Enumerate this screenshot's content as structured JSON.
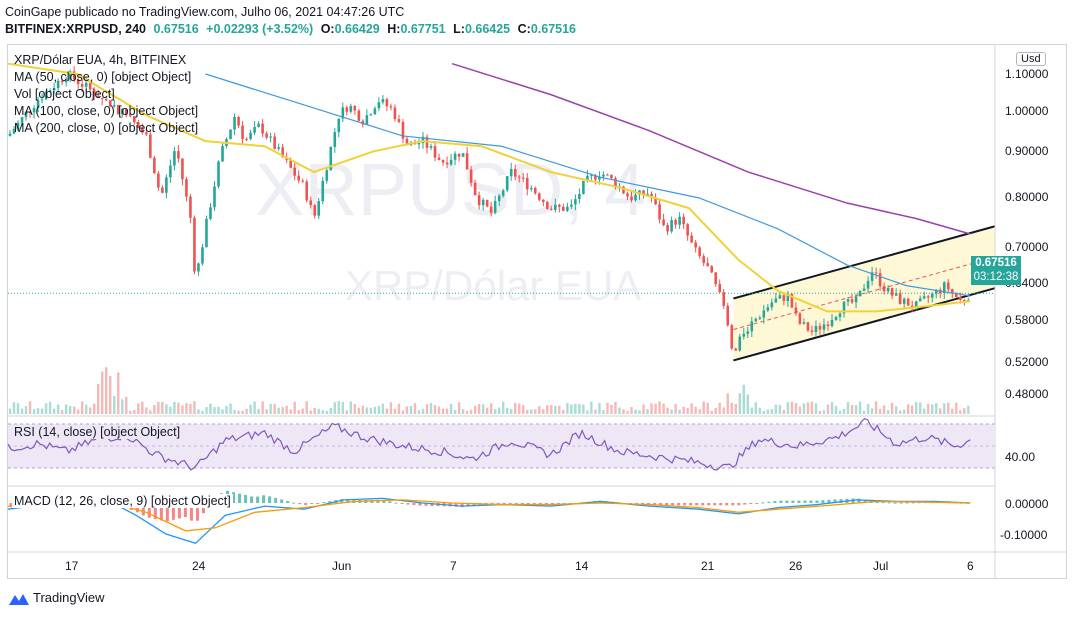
{
  "header": {
    "publisher_line": "CoinGape publicado no TradingView.com, Julho 06, 2021 04:47:26 UTC",
    "symbol": "BITFINEX:XRPUSD, 240",
    "last": "0.67516",
    "change": "+0.02293 (+3.52%)",
    "open_label": "O:",
    "open": "0.66429",
    "high_label": "H:",
    "high": "0.67751",
    "low_label": "L:",
    "low": "0.66425",
    "close_label": "C:",
    "close": "0.67516"
  },
  "legend": {
    "title": "XRP/Dólar EUA, 4h, BITFINEX",
    "ma50": "MA (50, close, 0) [object Object]",
    "vol": "Vol [object Object]",
    "ma100": "MA (100, close, 0) [object Object]",
    "ma200": "MA (200, close, 0) [object Object]"
  },
  "watermark": {
    "ticker": "XRPUSD, 4",
    "name": "XRP/Dólar EUA"
  },
  "price_axis": {
    "currency": "Usd",
    "ticks": [
      "1.10000",
      "1.00000",
      "0.90000",
      "0.80000",
      "0.70000",
      "0.58000",
      "0.52000",
      "0.48000"
    ],
    "current_price": "0.67516",
    "countdown": "03:12:38",
    "partial_tick": "0.64000"
  },
  "rsi": {
    "label": "RSI (14, close) [object Object]",
    "tick": "40.00"
  },
  "macd": {
    "label": "MACD (12, 26, close, 9) [object Object]",
    "ticks": [
      "0.00000",
      "-0.10000"
    ]
  },
  "time_axis": {
    "ticks": [
      "17",
      "24",
      "Jun",
      "7",
      "14",
      "21",
      "26",
      "Jul",
      "6"
    ]
  },
  "footer": {
    "brand": "TradingView"
  },
  "colors": {
    "up": "#26a69a",
    "down": "#ef5350",
    "ma50": "#f2d137",
    "ma100": "#3d9ae0",
    "ma200": "#9c3fb0",
    "rsi": "#7e57c2",
    "macd": "#2196f3",
    "signal": "#ff9800",
    "channel_fill": "#fff8d6",
    "channel_line": "#131722",
    "channel_mid": "#ef5350"
  },
  "chart_data": [
    {
      "type": "candlestick",
      "title": "XRP/Dólar EUA, 4h, BITFINEX",
      "ylim": [
        0.46,
        1.12
      ],
      "x": [
        "17",
        "24",
        "Jun",
        "7",
        "14",
        "21",
        "26",
        "Jul",
        "6"
      ],
      "close_path": [
        [
          0.0,
          0.98
        ],
        [
          0.03,
          1.05
        ],
        [
          0.06,
          1.1
        ],
        [
          0.09,
          1.06
        ],
        [
          0.12,
          1.02
        ],
        [
          0.14,
          0.98
        ],
        [
          0.155,
          0.86
        ],
        [
          0.17,
          0.96
        ],
        [
          0.185,
          0.82
        ],
        [
          0.19,
          0.7
        ],
        [
          0.2,
          0.8
        ],
        [
          0.215,
          0.94
        ],
        [
          0.23,
          1.02
        ],
        [
          0.24,
          0.97
        ],
        [
          0.255,
          1.0
        ],
        [
          0.27,
          0.96
        ],
        [
          0.285,
          0.92
        ],
        [
          0.3,
          0.88
        ],
        [
          0.31,
          0.82
        ],
        [
          0.32,
          0.9
        ],
        [
          0.335,
          1.02
        ],
        [
          0.345,
          1.04
        ],
        [
          0.36,
          1.01
        ],
        [
          0.375,
          1.05
        ],
        [
          0.39,
          1.03
        ],
        [
          0.405,
          0.96
        ],
        [
          0.42,
          0.97
        ],
        [
          0.44,
          0.93
        ],
        [
          0.46,
          0.95
        ],
        [
          0.475,
          0.86
        ],
        [
          0.49,
          0.83
        ],
        [
          0.51,
          0.91
        ],
        [
          0.53,
          0.88
        ],
        [
          0.55,
          0.84
        ],
        [
          0.57,
          0.84
        ],
        [
          0.585,
          0.89
        ],
        [
          0.6,
          0.91
        ],
        [
          0.615,
          0.89
        ],
        [
          0.63,
          0.86
        ],
        [
          0.65,
          0.87
        ],
        [
          0.665,
          0.8
        ],
        [
          0.68,
          0.82
        ],
        [
          0.695,
          0.76
        ],
        [
          0.71,
          0.72
        ],
        [
          0.725,
          0.65
        ],
        [
          0.735,
          0.55
        ],
        [
          0.745,
          0.6
        ],
        [
          0.76,
          0.63
        ],
        [
          0.775,
          0.66
        ],
        [
          0.79,
          0.67
        ],
        [
          0.8,
          0.62
        ],
        [
          0.815,
          0.6
        ],
        [
          0.83,
          0.62
        ],
        [
          0.845,
          0.65
        ],
        [
          0.86,
          0.66
        ],
        [
          0.875,
          0.72
        ],
        [
          0.89,
          0.68
        ],
        [
          0.905,
          0.66
        ],
        [
          0.92,
          0.65
        ],
        [
          0.935,
          0.67
        ],
        [
          0.95,
          0.69
        ],
        [
          0.965,
          0.66
        ],
        [
          0.975,
          0.675
        ]
      ],
      "ma50": [
        [
          0.0,
          1.12
        ],
        [
          0.07,
          1.1
        ],
        [
          0.14,
          1.02
        ],
        [
          0.2,
          0.97
        ],
        [
          0.26,
          0.96
        ],
        [
          0.31,
          0.91
        ],
        [
          0.37,
          0.95
        ],
        [
          0.42,
          0.97
        ],
        [
          0.48,
          0.96
        ],
        [
          0.55,
          0.91
        ],
        [
          0.62,
          0.88
        ],
        [
          0.69,
          0.84
        ],
        [
          0.74,
          0.74
        ],
        [
          0.78,
          0.68
        ],
        [
          0.83,
          0.64
        ],
        [
          0.88,
          0.64
        ],
        [
          0.93,
          0.65
        ],
        [
          0.975,
          0.66
        ]
      ],
      "ma100": [
        [
          0.2,
          1.1
        ],
        [
          0.3,
          1.04
        ],
        [
          0.4,
          0.98
        ],
        [
          0.5,
          0.96
        ],
        [
          0.6,
          0.9
        ],
        [
          0.7,
          0.86
        ],
        [
          0.78,
          0.8
        ],
        [
          0.85,
          0.73
        ],
        [
          0.91,
          0.69
        ],
        [
          0.975,
          0.67
        ]
      ],
      "ma200": [
        [
          0.45,
          1.12
        ],
        [
          0.55,
          1.06
        ],
        [
          0.65,
          0.99
        ],
        [
          0.75,
          0.91
        ],
        [
          0.85,
          0.85
        ],
        [
          0.92,
          0.82
        ],
        [
          0.975,
          0.79
        ]
      ],
      "channel": {
        "upper": [
          [
            0.735,
            0.665
          ],
          [
            1.0,
            0.805
          ]
        ],
        "lower": [
          [
            0.735,
            0.545
          ],
          [
            1.0,
            0.685
          ]
        ]
      }
    },
    {
      "type": "line",
      "name": "RSI",
      "ylabel": "RSI (14, close)",
      "ylim": [
        20,
        80
      ],
      "band": [
        30,
        70
      ],
      "points": [
        [
          0.0,
          48
        ],
        [
          0.03,
          52
        ],
        [
          0.06,
          45
        ],
        [
          0.09,
          56
        ],
        [
          0.12,
          60
        ],
        [
          0.15,
          42
        ],
        [
          0.19,
          30
        ],
        [
          0.22,
          55
        ],
        [
          0.26,
          62
        ],
        [
          0.29,
          45
        ],
        [
          0.33,
          68
        ],
        [
          0.36,
          58
        ],
        [
          0.4,
          50
        ],
        [
          0.44,
          45
        ],
        [
          0.47,
          38
        ],
        [
          0.51,
          55
        ],
        [
          0.55,
          42
        ],
        [
          0.58,
          62
        ],
        [
          0.62,
          45
        ],
        [
          0.66,
          40
        ],
        [
          0.7,
          35
        ],
        [
          0.73,
          30
        ],
        [
          0.76,
          56
        ],
        [
          0.8,
          50
        ],
        [
          0.84,
          58
        ],
        [
          0.87,
          72
        ],
        [
          0.9,
          52
        ],
        [
          0.93,
          58
        ],
        [
          0.96,
          50
        ],
        [
          0.975,
          55
        ]
      ]
    },
    {
      "type": "line",
      "name": "MACD",
      "ylabel": "MACD (12, 26, close, 9)",
      "ylim": [
        -0.13,
        0.03
      ],
      "macd": [
        [
          0.0,
          -0.02
        ],
        [
          0.05,
          0.0
        ],
        [
          0.1,
          0.01
        ],
        [
          0.13,
          -0.04
        ],
        [
          0.16,
          -0.1
        ],
        [
          0.19,
          -0.13
        ],
        [
          0.22,
          -0.04
        ],
        [
          0.26,
          -0.01
        ],
        [
          0.3,
          -0.02
        ],
        [
          0.34,
          0.01
        ],
        [
          0.38,
          0.015
        ],
        [
          0.42,
          0.0
        ],
        [
          0.46,
          -0.01
        ],
        [
          0.5,
          -0.005
        ],
        [
          0.55,
          -0.01
        ],
        [
          0.6,
          0.005
        ],
        [
          0.65,
          -0.01
        ],
        [
          0.7,
          -0.02
        ],
        [
          0.74,
          -0.035
        ],
        [
          0.78,
          -0.015
        ],
        [
          0.82,
          -0.005
        ],
        [
          0.86,
          0.01
        ],
        [
          0.9,
          0.005
        ],
        [
          0.94,
          0.005
        ],
        [
          0.975,
          0.0
        ]
      ],
      "signal": [
        [
          0.0,
          -0.01
        ],
        [
          0.05,
          0.0
        ],
        [
          0.1,
          0.005
        ],
        [
          0.14,
          -0.03
        ],
        [
          0.18,
          -0.09
        ],
        [
          0.21,
          -0.08
        ],
        [
          0.25,
          -0.03
        ],
        [
          0.3,
          -0.015
        ],
        [
          0.35,
          0.005
        ],
        [
          0.4,
          0.01
        ],
        [
          0.45,
          0.0
        ],
        [
          0.5,
          -0.005
        ],
        [
          0.55,
          -0.005
        ],
        [
          0.6,
          0.0
        ],
        [
          0.65,
          -0.005
        ],
        [
          0.7,
          -0.015
        ],
        [
          0.74,
          -0.03
        ],
        [
          0.78,
          -0.02
        ],
        [
          0.83,
          -0.008
        ],
        [
          0.88,
          0.005
        ],
        [
          0.93,
          0.003
        ],
        [
          0.975,
          0.0
        ]
      ]
    }
  ]
}
